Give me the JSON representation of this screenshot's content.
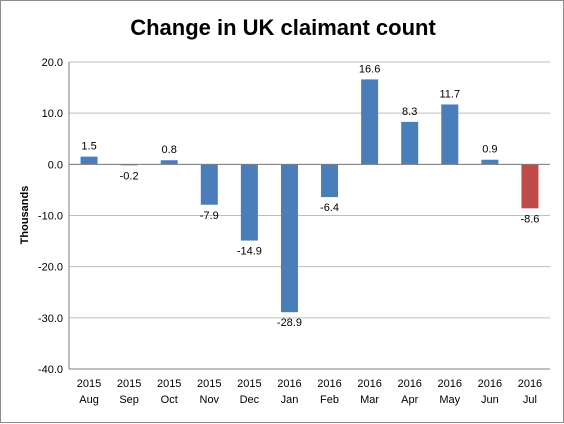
{
  "chart_data": {
    "type": "bar",
    "title": "Change in UK claimant count",
    "ylabel": "Thousands",
    "xlabel": "",
    "ylim": [
      -40,
      20
    ],
    "yticks": [
      20,
      10,
      0,
      -10,
      -20,
      -30,
      -40
    ],
    "ytick_labels": [
      "20.0",
      "10.0",
      "0.0",
      "-10.0",
      "-20.0",
      "-30.0",
      "-40.0"
    ],
    "categories": [
      {
        "year": "2015",
        "month": "Aug"
      },
      {
        "year": "2015",
        "month": "Sep"
      },
      {
        "year": "2015",
        "month": "Oct"
      },
      {
        "year": "2015",
        "month": "Nov"
      },
      {
        "year": "2015",
        "month": "Dec"
      },
      {
        "year": "2016",
        "month": "Jan"
      },
      {
        "year": "2016",
        "month": "Feb"
      },
      {
        "year": "2016",
        "month": "Mar"
      },
      {
        "year": "2016",
        "month": "Apr"
      },
      {
        "year": "2016",
        "month": "May"
      },
      {
        "year": "2016",
        "month": "Jun"
      },
      {
        "year": "2016",
        "month": "Jul"
      }
    ],
    "values": [
      1.5,
      -0.2,
      0.8,
      -7.9,
      -14.9,
      -28.9,
      -6.4,
      16.6,
      8.3,
      11.7,
      0.9,
      -8.6
    ],
    "value_labels": [
      "1.5",
      "-0.2",
      "0.8",
      "-7.9",
      "-14.9",
      "-28.9",
      "-6.4",
      "16.6",
      "8.3",
      "11.7",
      "0.9",
      "-8.6"
    ],
    "grid": true,
    "legend": "none",
    "colors": {
      "bar": "#4a7ebb",
      "highlight_bar": "#be4b48",
      "highlight_index": 11
    }
  }
}
